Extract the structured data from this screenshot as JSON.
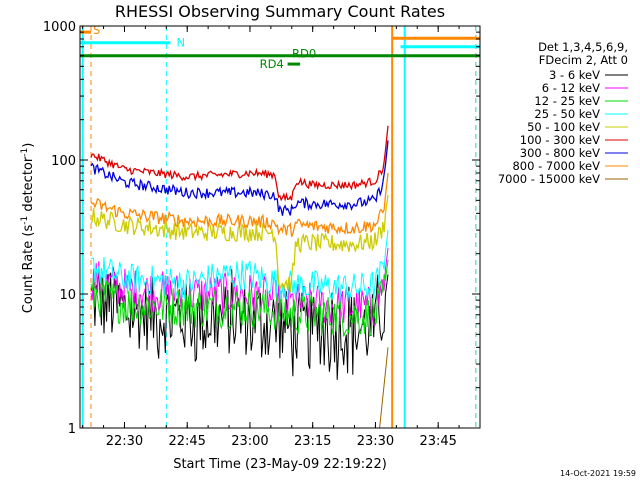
{
  "chart_data": {
    "type": "line",
    "title": "RHESSI Observing Summary Count Rates",
    "xlabel": "Start Time (23-May-09 22:19:22)",
    "ylabel": "Count Rate (s",
    "ylabel_sup1": "-1",
    "ylabel_mid": " detector",
    "ylabel_sup2": "-1",
    "ylabel_end": ")",
    "yscale": "log",
    "xlim": [
      "22:19:22",
      "23:55:00"
    ],
    "ylim": [
      1,
      1000
    ],
    "x_ticks": [
      "22:30",
      "22:45",
      "23:00",
      "23:15",
      "23:30",
      "23:45"
    ],
    "y_ticks": [
      {
        "value": 1,
        "label": "1"
      },
      {
        "value": 10,
        "label": "10"
      },
      {
        "value": 100,
        "label": "100"
      },
      {
        "value": 1000,
        "label": "1000"
      }
    ],
    "legend_header": [
      "Det 1,3,4,5,6,9,",
      "FDecim 2, Att 0"
    ],
    "legend_position": "right",
    "footer_date": "14-Oct-2021 19:59",
    "series": [
      {
        "name": "3 - 6 keV",
        "color": "#000000",
        "x": [
          "22:22",
          "22:30",
          "22:45",
          "23:00",
          "23:07",
          "23:10",
          "23:15",
          "23:25",
          "23:30",
          "23:32",
          "23:33"
        ],
        "y": [
          9,
          7.5,
          6.5,
          6.5,
          6,
          5.5,
          5.5,
          5.5,
          5.5,
          8,
          14
        ]
      },
      {
        "name": "6 - 12 keV",
        "color": "#ff00ff",
        "x": [
          "22:22",
          "22:30",
          "22:45",
          "23:00",
          "23:07",
          "23:10",
          "23:15",
          "23:25",
          "23:30",
          "23:32",
          "23:33"
        ],
        "y": [
          13,
          11,
          10,
          10,
          9,
          8.5,
          8.5,
          8,
          8,
          12,
          22
        ]
      },
      {
        "name": "12 - 25 keV",
        "color": "#00dd00",
        "x": [
          "22:22",
          "22:30",
          "22:45",
          "23:00",
          "23:07",
          "23:10",
          "23:15",
          "23:25",
          "23:30",
          "23:32",
          "23:33"
        ],
        "y": [
          10,
          8.5,
          8,
          8,
          7.5,
          7,
          7,
          6.8,
          7,
          10,
          18
        ]
      },
      {
        "name": "25 - 50 keV",
        "color": "#00ffff",
        "x": [
          "22:22",
          "22:30",
          "22:45",
          "22:55",
          "23:00",
          "23:07",
          "23:10",
          "23:15",
          "23:25",
          "23:30",
          "23:32",
          "23:33"
        ],
        "y": [
          16,
          13,
          12,
          14,
          14,
          12,
          11.5,
          11.5,
          11,
          11.5,
          16,
          30
        ]
      },
      {
        "name": "50 - 100 keV",
        "color": "#cccc00",
        "x": [
          "22:22",
          "22:30",
          "22:45",
          "23:00",
          "23:06",
          "23:07",
          "23:10",
          "23:11",
          "23:15",
          "23:25",
          "23:30",
          "23:32",
          "23:33"
        ],
        "y": [
          38,
          33,
          29,
          29,
          29,
          12,
          12,
          24,
          24,
          23.5,
          25,
          32,
          55
        ]
      },
      {
        "name": "100 - 300 keV",
        "color": "#dd0000",
        "x": [
          "22:22",
          "22:30",
          "22:45",
          "23:00",
          "23:06",
          "23:07",
          "23:10",
          "23:11",
          "23:15",
          "23:25",
          "23:30",
          "23:32",
          "23:33"
        ],
        "y": [
          110,
          85,
          75,
          80,
          78,
          52,
          52,
          70,
          65,
          65,
          70,
          90,
          180
        ]
      },
      {
        "name": "300 - 800 keV",
        "color": "#0000dd",
        "x": [
          "22:22",
          "22:30",
          "22:45",
          "23:00",
          "23:06",
          "23:07",
          "23:10",
          "23:11",
          "23:15",
          "23:25",
          "23:30",
          "23:32",
          "23:33"
        ],
        "y": [
          88,
          68,
          57,
          57,
          55,
          42,
          42,
          48,
          47,
          47,
          50,
          70,
          140
        ]
      },
      {
        "name": "800 - 7000 keV",
        "color": "#ff8800",
        "x": [
          "22:22",
          "22:30",
          "22:45",
          "23:00",
          "23:06",
          "23:07",
          "23:10",
          "23:11",
          "23:15",
          "23:25",
          "23:30",
          "23:32",
          "23:33"
        ],
        "y": [
          48,
          40,
          35,
          35,
          34,
          30,
          30,
          33,
          32,
          31,
          33,
          42,
          80
        ]
      },
      {
        "name": "7000 - 15000 keV",
        "color": "#996600",
        "x": [
          "23:31",
          "23:32",
          "23:33"
        ],
        "y": [
          1,
          2,
          4
        ]
      }
    ],
    "annotations": [
      {
        "label": "S",
        "color": "#ff8800",
        "x1": "22:19:22",
        "x2": "22:22",
        "y": 900
      },
      {
        "label": "N",
        "color": "#00ffff",
        "x1": "22:19:22",
        "x2": "22:41",
        "y": 750
      },
      {
        "label": "RD0",
        "color": "#008800",
        "x1": "22:19:22",
        "x2": "23:55:00",
        "y": 600
      },
      {
        "label": "RD4",
        "color": "#008800",
        "x1": "23:09",
        "x2": "23:12",
        "y": 520
      },
      {
        "label": "",
        "color": "#ff8800",
        "x1": "23:34",
        "x2": "23:55:00",
        "y": 810
      },
      {
        "label": "",
        "color": "#00ffff",
        "x1": "23:36",
        "x2": "23:55:00",
        "y": 700
      }
    ],
    "vertical_lines": [
      {
        "x": "22:20",
        "color": "#00ffff",
        "style": "solid"
      },
      {
        "x": "22:22",
        "color": "#ff8800",
        "style": "dashed"
      },
      {
        "x": "22:40",
        "color": "#00ffff",
        "style": "dashed"
      },
      {
        "x": "23:34",
        "color": "#ff8800",
        "style": "solid"
      },
      {
        "x": "23:37",
        "color": "#00ffff",
        "style": "solid"
      },
      {
        "x": "23:54",
        "color": "#ff8800",
        "style": "dashed"
      },
      {
        "x": "23:54",
        "color": "#00ffff",
        "style": "dashed"
      }
    ]
  }
}
